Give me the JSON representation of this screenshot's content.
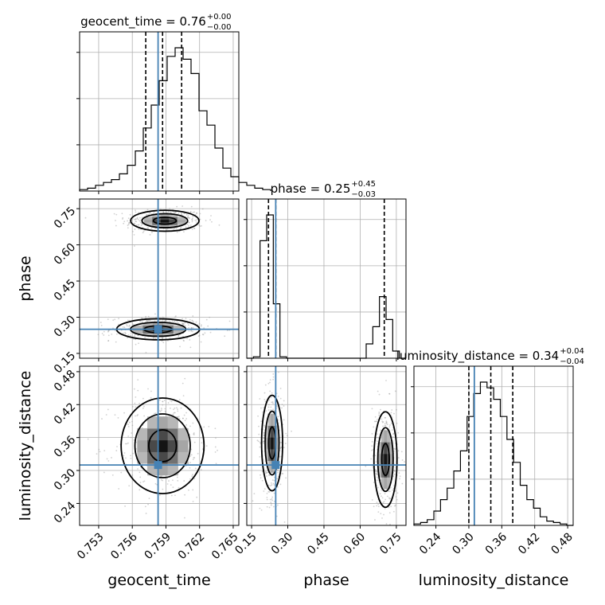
{
  "chart_data": {
    "type": "scatter",
    "subtype": "corner",
    "parameters": [
      "geocent_time",
      "phase",
      "luminosity_distance"
    ],
    "truths": [
      0.7583,
      0.25,
      0.31
    ],
    "truth_color": "#4682b4",
    "ranges": {
      "geocent_time": [
        0.7513,
        0.7655
      ],
      "phase": [
        0.13,
        0.79
      ],
      "luminosity_distance": [
        0.2,
        0.49
      ]
    },
    "ticks": {
      "geocent_time": [
        "0.753",
        "0.756",
        "0.759",
        "0.762",
        "0.765"
      ],
      "phase": [
        "0.15",
        "0.30",
        "0.45",
        "0.60",
        "0.75"
      ],
      "luminosity_distance": [
        "0.24",
        "0.30",
        "0.36",
        "0.42",
        "0.48"
      ]
    },
    "titles": [
      {
        "param": "geocent_time",
        "text": "geocent_time = 0.76",
        "sup": "+0.00",
        "sub": "−0.00"
      },
      {
        "param": "phase",
        "text": "phase = 0.25",
        "sup": "+0.45",
        "sub": "−0.03"
      },
      {
        "param": "luminosity_distance",
        "text": "luminosity_distance = 0.34",
        "sup": "+0.04",
        "sub": "−0.04"
      }
    ],
    "quantiles": {
      "geocent_time": [
        0.7572,
        0.7587,
        0.7604
      ],
      "phase": [
        0.22,
        0.25,
        0.7
      ],
      "luminosity_distance": [
        0.3,
        0.34,
        0.38
      ]
    },
    "histograms": {
      "geocent_time": {
        "edges_start": 0.7513,
        "bin_width": 0.00071,
        "counts": [
          0.01,
          0.02,
          0.04,
          0.06,
          0.08,
          0.12,
          0.18,
          0.28,
          0.44,
          0.6,
          0.77,
          0.94,
          1.0,
          0.92,
          0.82,
          0.56,
          0.46,
          0.3,
          0.16,
          0.1,
          0.06,
          0.04,
          0.02,
          0.01
        ]
      },
      "phase": {
        "edges_start": 0.13,
        "bin_width": 0.0275,
        "counts": [
          0.0,
          0.01,
          0.82,
          1.0,
          0.38,
          0.01,
          0.0,
          0.0,
          0.0,
          0.0,
          0.0,
          0.0,
          0.0,
          0.0,
          0.0,
          0.0,
          0.0,
          0.0,
          0.1,
          0.22,
          0.43,
          0.27,
          0.05,
          0.0
        ]
      },
      "luminosity_distance": {
        "edges_start": 0.2,
        "bin_width": 0.0121,
        "counts": [
          0.01,
          0.02,
          0.04,
          0.1,
          0.18,
          0.26,
          0.38,
          0.52,
          0.76,
          0.92,
          1.0,
          0.96,
          0.88,
          0.76,
          0.6,
          0.44,
          0.28,
          0.18,
          0.12,
          0.06,
          0.03,
          0.02,
          0.01,
          0.0
        ]
      }
    },
    "density_clusters": {
      "geocent_time|phase": [
        {
          "x": 0.7589,
          "y": 0.7,
          "sx": 0.0014,
          "sy": 0.02
        },
        {
          "x": 0.7583,
          "y": 0.25,
          "sx": 0.0017,
          "sy": 0.02
        }
      ],
      "geocent_time|luminosity_distance": [
        {
          "x": 0.7587,
          "y": 0.345,
          "sx": 0.0017,
          "sy": 0.04
        }
      ],
      "phase|luminosity_distance": [
        {
          "x": 0.235,
          "y": 0.35,
          "sx": 0.02,
          "sy": 0.04
        },
        {
          "x": 0.705,
          "y": 0.32,
          "sx": 0.022,
          "sy": 0.04
        }
      ]
    },
    "grid": true,
    "histogram_style": "step",
    "contour_levels": 3
  }
}
